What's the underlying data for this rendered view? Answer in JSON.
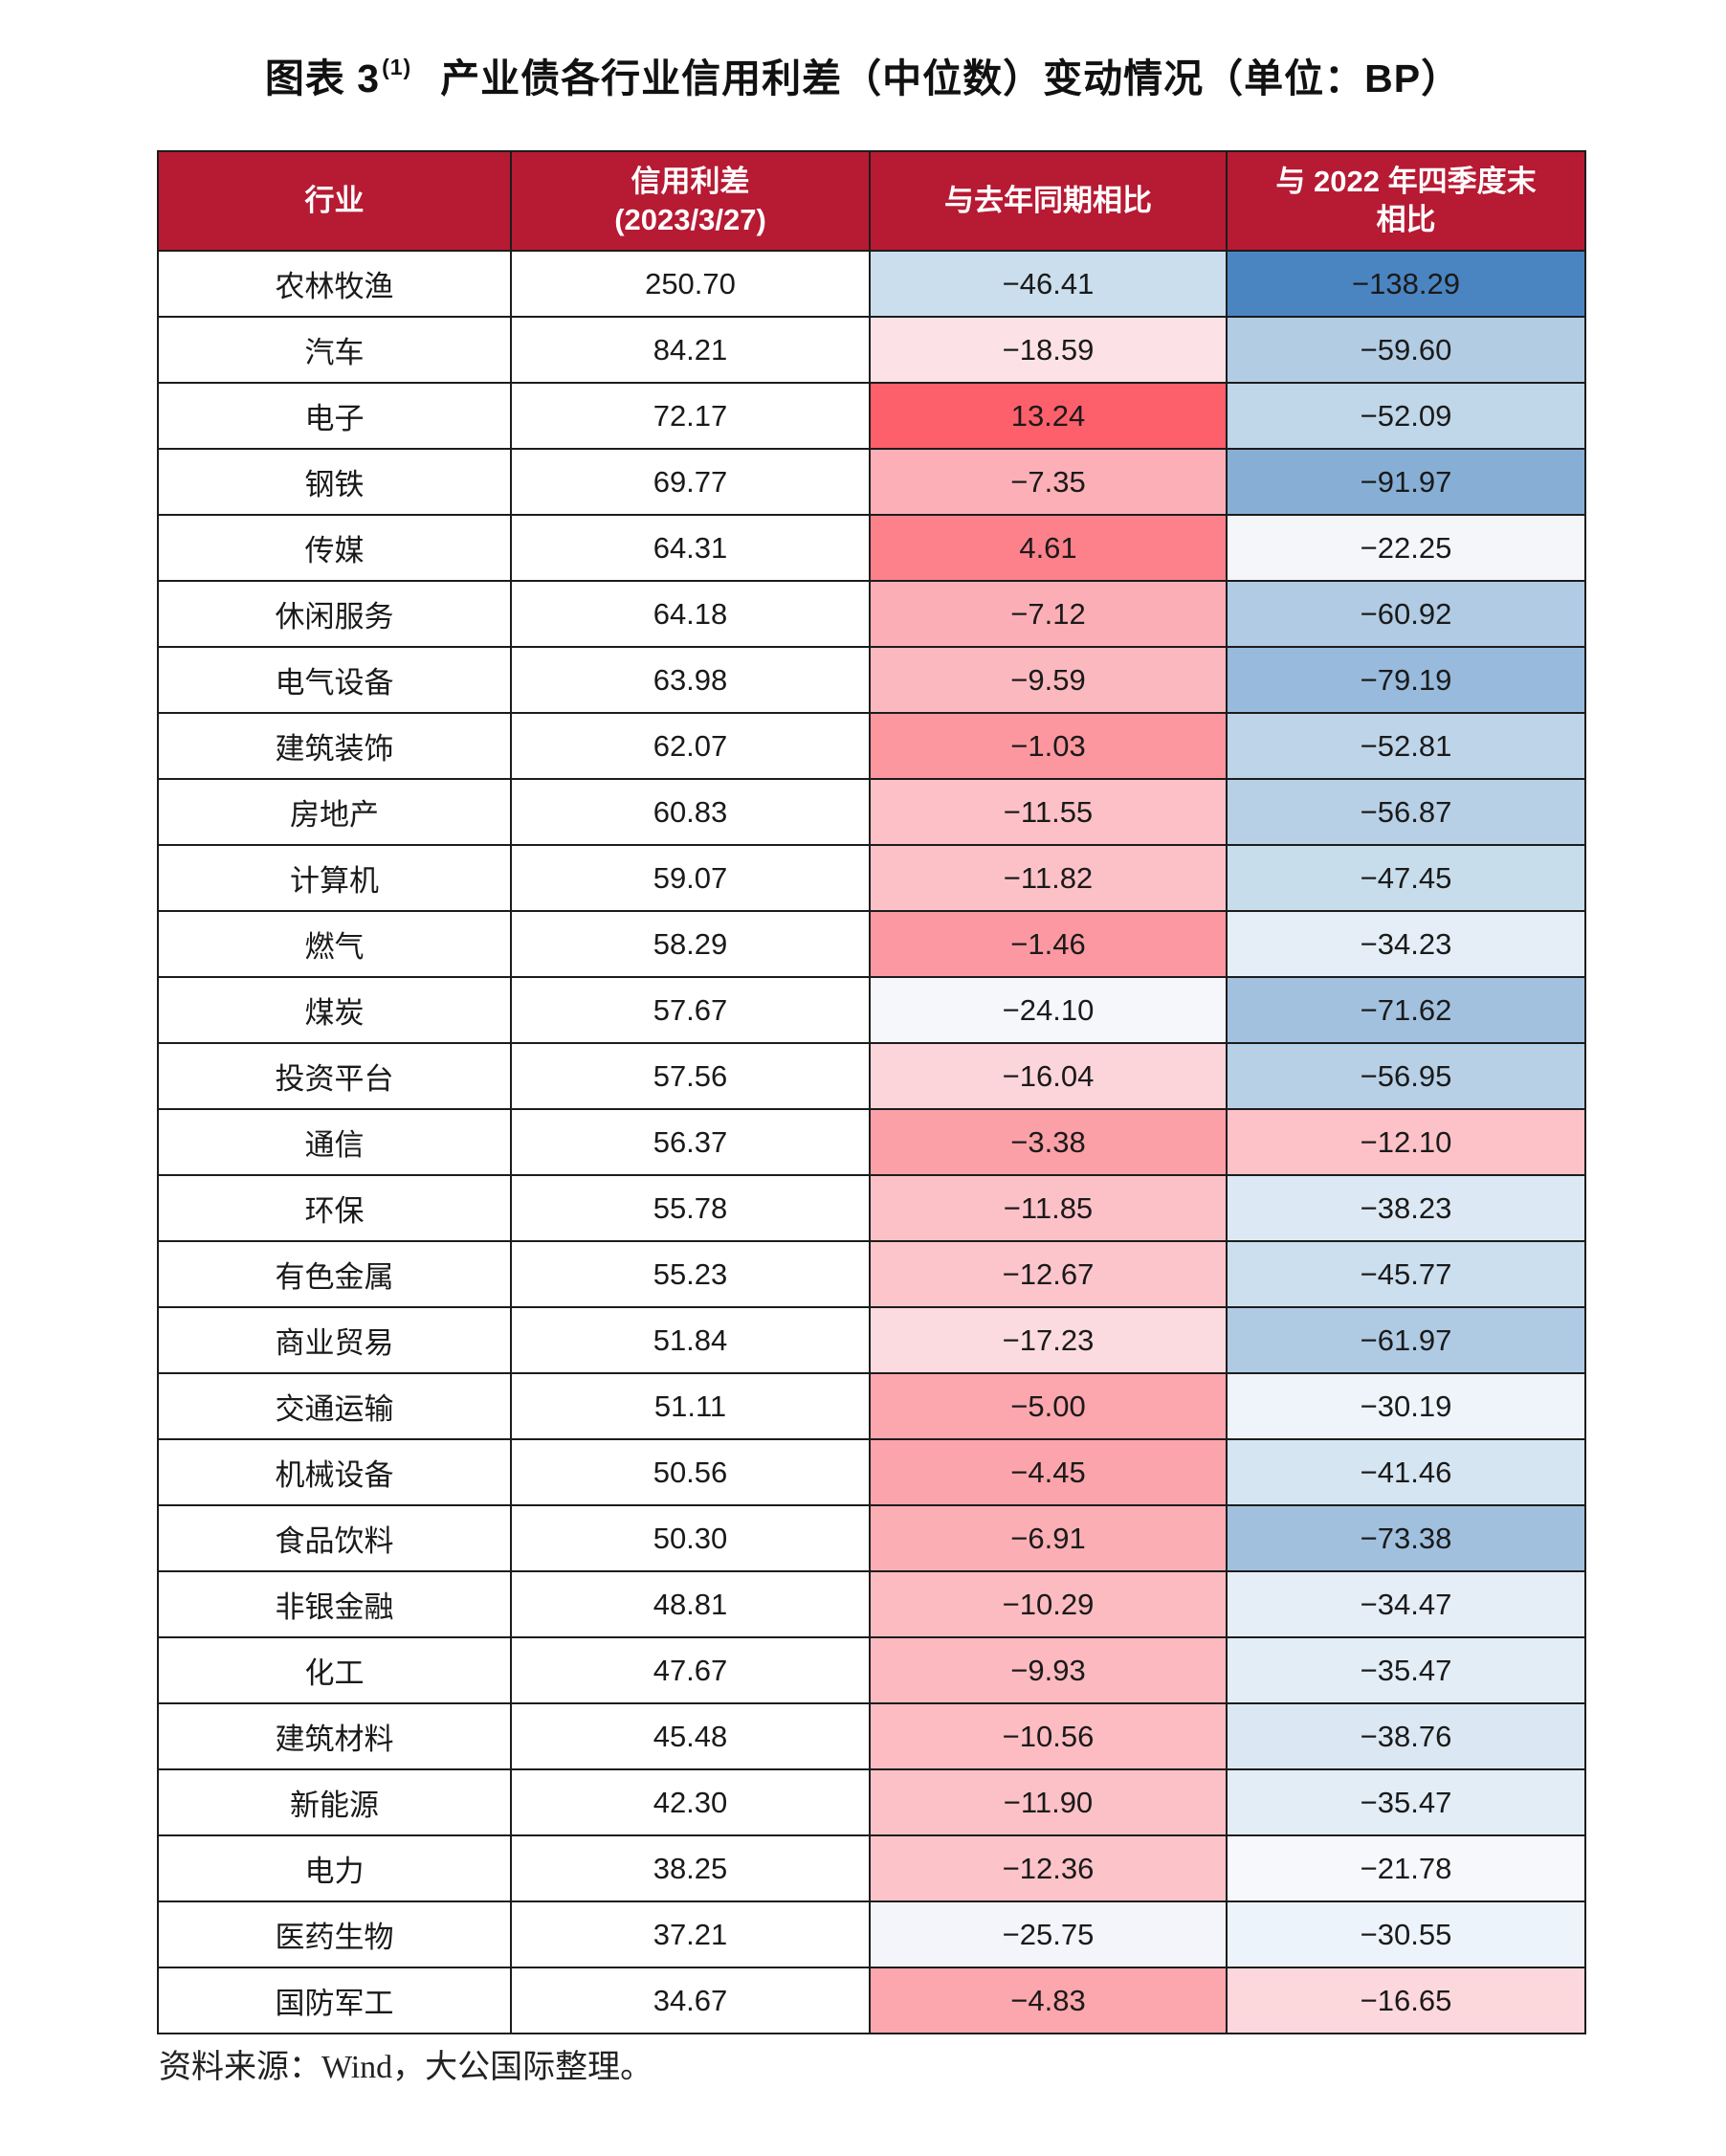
{
  "title": {
    "figure_label": "图表 3",
    "superscript": "(1)",
    "text": "产业债各行业信用利差（中位数）变动情况（单位：BP）"
  },
  "source_note": "资料来源：Wind，大公国际整理。",
  "colors": {
    "header_bg": "#B71A33",
    "header_text": "#FFFFFF",
    "border": "#1C1C1C",
    "cell_text": "#1A1A1A",
    "heat_red_max": "#FD5F6B",
    "heat_white_mid": "#FCFCFF",
    "heat_blue_min": "#4A85C2"
  },
  "chart_data": {
    "type": "table",
    "subtype": "heatmap-table",
    "title": "产业债各行业信用利差（中位数）变动情况（单位：BP）",
    "columns": [
      "行业",
      "信用利差\n(2023/3/27)",
      "与去年同期相比",
      "与 2022 年四季度末\n相比"
    ],
    "heatmap_note": "red = rise / smaller decline, blue = larger decline",
    "rows": [
      {
        "industry": "农林牧渔",
        "spread": "250.70",
        "yoy": {
          "text": "−46.41",
          "value": -46.41,
          "bg": "#CADEED"
        },
        "q4": {
          "text": "−138.29",
          "value": -138.29,
          "bg": "#4A85C2"
        }
      },
      {
        "industry": "汽车",
        "spread": "84.21",
        "yoy": {
          "text": "−18.59",
          "value": -18.59,
          "bg": "#FCE2E6"
        },
        "q4": {
          "text": "−59.60",
          "value": -59.6,
          "bg": "#B2CCE4"
        }
      },
      {
        "industry": "电子",
        "spread": "72.17",
        "yoy": {
          "text": "13.24",
          "value": 13.24,
          "bg": "#FD5F6B"
        },
        "q4": {
          "text": "−52.09",
          "value": -52.09,
          "bg": "#C0D6E9"
        }
      },
      {
        "industry": "钢铁",
        "spread": "69.77",
        "yoy": {
          "text": "−7.35",
          "value": -7.35,
          "bg": "#FCAFB7"
        },
        "q4": {
          "text": "−91.97",
          "value": -91.97,
          "bg": "#87AFD6"
        }
      },
      {
        "industry": "传媒",
        "spread": "64.31",
        "yoy": {
          "text": "4.61",
          "value": 4.61,
          "bg": "#FC818B"
        },
        "q4": {
          "text": "−22.25",
          "value": -22.25,
          "bg": "#F4F6FA"
        }
      },
      {
        "industry": "休闲服务",
        "spread": "64.18",
        "yoy": {
          "text": "−7.12",
          "value": -7.12,
          "bg": "#FCAEB6"
        },
        "q4": {
          "text": "−60.92",
          "value": -60.92,
          "bg": "#B0CBE3"
        }
      },
      {
        "industry": "电气设备",
        "spread": "63.98",
        "yoy": {
          "text": "−9.59",
          "value": -9.59,
          "bg": "#FCB8BF"
        },
        "q4": {
          "text": "−79.19",
          "value": -79.19,
          "bg": "#98BADC"
        }
      },
      {
        "industry": "建筑装饰",
        "spread": "62.07",
        "yoy": {
          "text": "−1.03",
          "value": -1.03,
          "bg": "#FC979F"
        },
        "q4": {
          "text": "−52.81",
          "value": -52.81,
          "bg": "#BED5E9"
        }
      },
      {
        "industry": "房地产",
        "spread": "60.83",
        "yoy": {
          "text": "−11.55",
          "value": -11.55,
          "bg": "#FCC0C6"
        },
        "q4": {
          "text": "−56.87",
          "value": -56.87,
          "bg": "#B7D0E6"
        }
      },
      {
        "industry": "计算机",
        "spread": "59.07",
        "yoy": {
          "text": "−11.82",
          "value": -11.82,
          "bg": "#FCC1C7"
        },
        "q4": {
          "text": "−47.45",
          "value": -47.45,
          "bg": "#C8DDEC"
        }
      },
      {
        "industry": "燃气",
        "spread": "58.29",
        "yoy": {
          "text": "−1.46",
          "value": -1.46,
          "bg": "#FC98A1"
        },
        "q4": {
          "text": "−34.23",
          "value": -34.23,
          "bg": "#E5EEF7"
        }
      },
      {
        "industry": "煤炭",
        "spread": "57.67",
        "yoy": {
          "text": "−24.10",
          "value": -24.1,
          "bg": "#F6F7FA"
        },
        "q4": {
          "text": "−71.62",
          "value": -71.62,
          "bg": "#A2C1DF"
        }
      },
      {
        "industry": "投资平台",
        "spread": "57.56",
        "yoy": {
          "text": "−16.04",
          "value": -16.04,
          "bg": "#FCD5DA"
        },
        "q4": {
          "text": "−56.95",
          "value": -56.95,
          "bg": "#B7D0E6"
        }
      },
      {
        "industry": "通信",
        "spread": "56.37",
        "yoy": {
          "text": "−3.38",
          "value": -3.38,
          "bg": "#FCA0A8"
        },
        "q4": {
          "text": "−12.10",
          "value": -12.1,
          "bg": "#FDC2C8"
        }
      },
      {
        "industry": "环保",
        "spread": "55.78",
        "yoy": {
          "text": "−11.85",
          "value": -11.85,
          "bg": "#FCC1C7"
        },
        "q4": {
          "text": "−38.23",
          "value": -38.23,
          "bg": "#DCE9F4"
        }
      },
      {
        "industry": "有色金属",
        "spread": "55.23",
        "yoy": {
          "text": "−12.67",
          "value": -12.67,
          "bg": "#FCC5CB"
        },
        "q4": {
          "text": "−45.77",
          "value": -45.77,
          "bg": "#CBDFEE"
        }
      },
      {
        "industry": "商业贸易",
        "spread": "51.84",
        "yoy": {
          "text": "−17.23",
          "value": -17.23,
          "bg": "#FCDBE0"
        },
        "q4": {
          "text": "−61.97",
          "value": -61.97,
          "bg": "#AFCAE3"
        }
      },
      {
        "industry": "交通运输",
        "spread": "51.11",
        "yoy": {
          "text": "−5.00",
          "value": -5.0,
          "bg": "#FCA6AE"
        },
        "q4": {
          "text": "−30.19",
          "value": -30.19,
          "bg": "#EEF4FA"
        }
      },
      {
        "industry": "机械设备",
        "spread": "50.56",
        "yoy": {
          "text": "−4.45",
          "value": -4.45,
          "bg": "#FCA4AC"
        },
        "q4": {
          "text": "−41.46",
          "value": -41.46,
          "bg": "#D5E5F1"
        }
      },
      {
        "industry": "食品饮料",
        "spread": "50.30",
        "yoy": {
          "text": "−6.91",
          "value": -6.91,
          "bg": "#FCAEB5"
        },
        "q4": {
          "text": "−73.38",
          "value": -73.38,
          "bg": "#A0C0DE"
        }
      },
      {
        "industry": "非银金融",
        "spread": "48.81",
        "yoy": {
          "text": "−10.29",
          "value": -10.29,
          "bg": "#FCBBC1"
        },
        "q4": {
          "text": "−34.47",
          "value": -34.47,
          "bg": "#E5EEF7"
        }
      },
      {
        "industry": "化工",
        "spread": "47.67",
        "yoy": {
          "text": "−9.93",
          "value": -9.93,
          "bg": "#FCB9C0"
        },
        "q4": {
          "text": "−35.47",
          "value": -35.47,
          "bg": "#E2EDF6"
        }
      },
      {
        "industry": "建筑材料",
        "spread": "45.48",
        "yoy": {
          "text": "−10.56",
          "value": -10.56,
          "bg": "#FCBCC2"
        },
        "q4": {
          "text": "−38.76",
          "value": -38.76,
          "bg": "#DBE8F3"
        }
      },
      {
        "industry": "新能源",
        "spread": "42.30",
        "yoy": {
          "text": "−11.90",
          "value": -11.9,
          "bg": "#FCC1C7"
        },
        "q4": {
          "text": "−35.47",
          "value": -35.47,
          "bg": "#E2EDF6"
        }
      },
      {
        "industry": "电力",
        "spread": "38.25",
        "yoy": {
          "text": "−12.36",
          "value": -12.36,
          "bg": "#FCC3C9"
        },
        "q4": {
          "text": "−21.78",
          "value": -21.78,
          "bg": "#F7F8FB"
        }
      },
      {
        "industry": "医药生物",
        "spread": "37.21",
        "yoy": {
          "text": "−25.75",
          "value": -25.75,
          "bg": "#F3F5FA"
        },
        "q4": {
          "text": "−30.55",
          "value": -30.55,
          "bg": "#EDF3FA"
        }
      },
      {
        "industry": "国防军工",
        "spread": "34.67",
        "yoy": {
          "text": "−4.83",
          "value": -4.83,
          "bg": "#FCA6AD"
        },
        "q4": {
          "text": "−16.65",
          "value": -16.65,
          "bg": "#FCD8DD"
        }
      }
    ]
  }
}
